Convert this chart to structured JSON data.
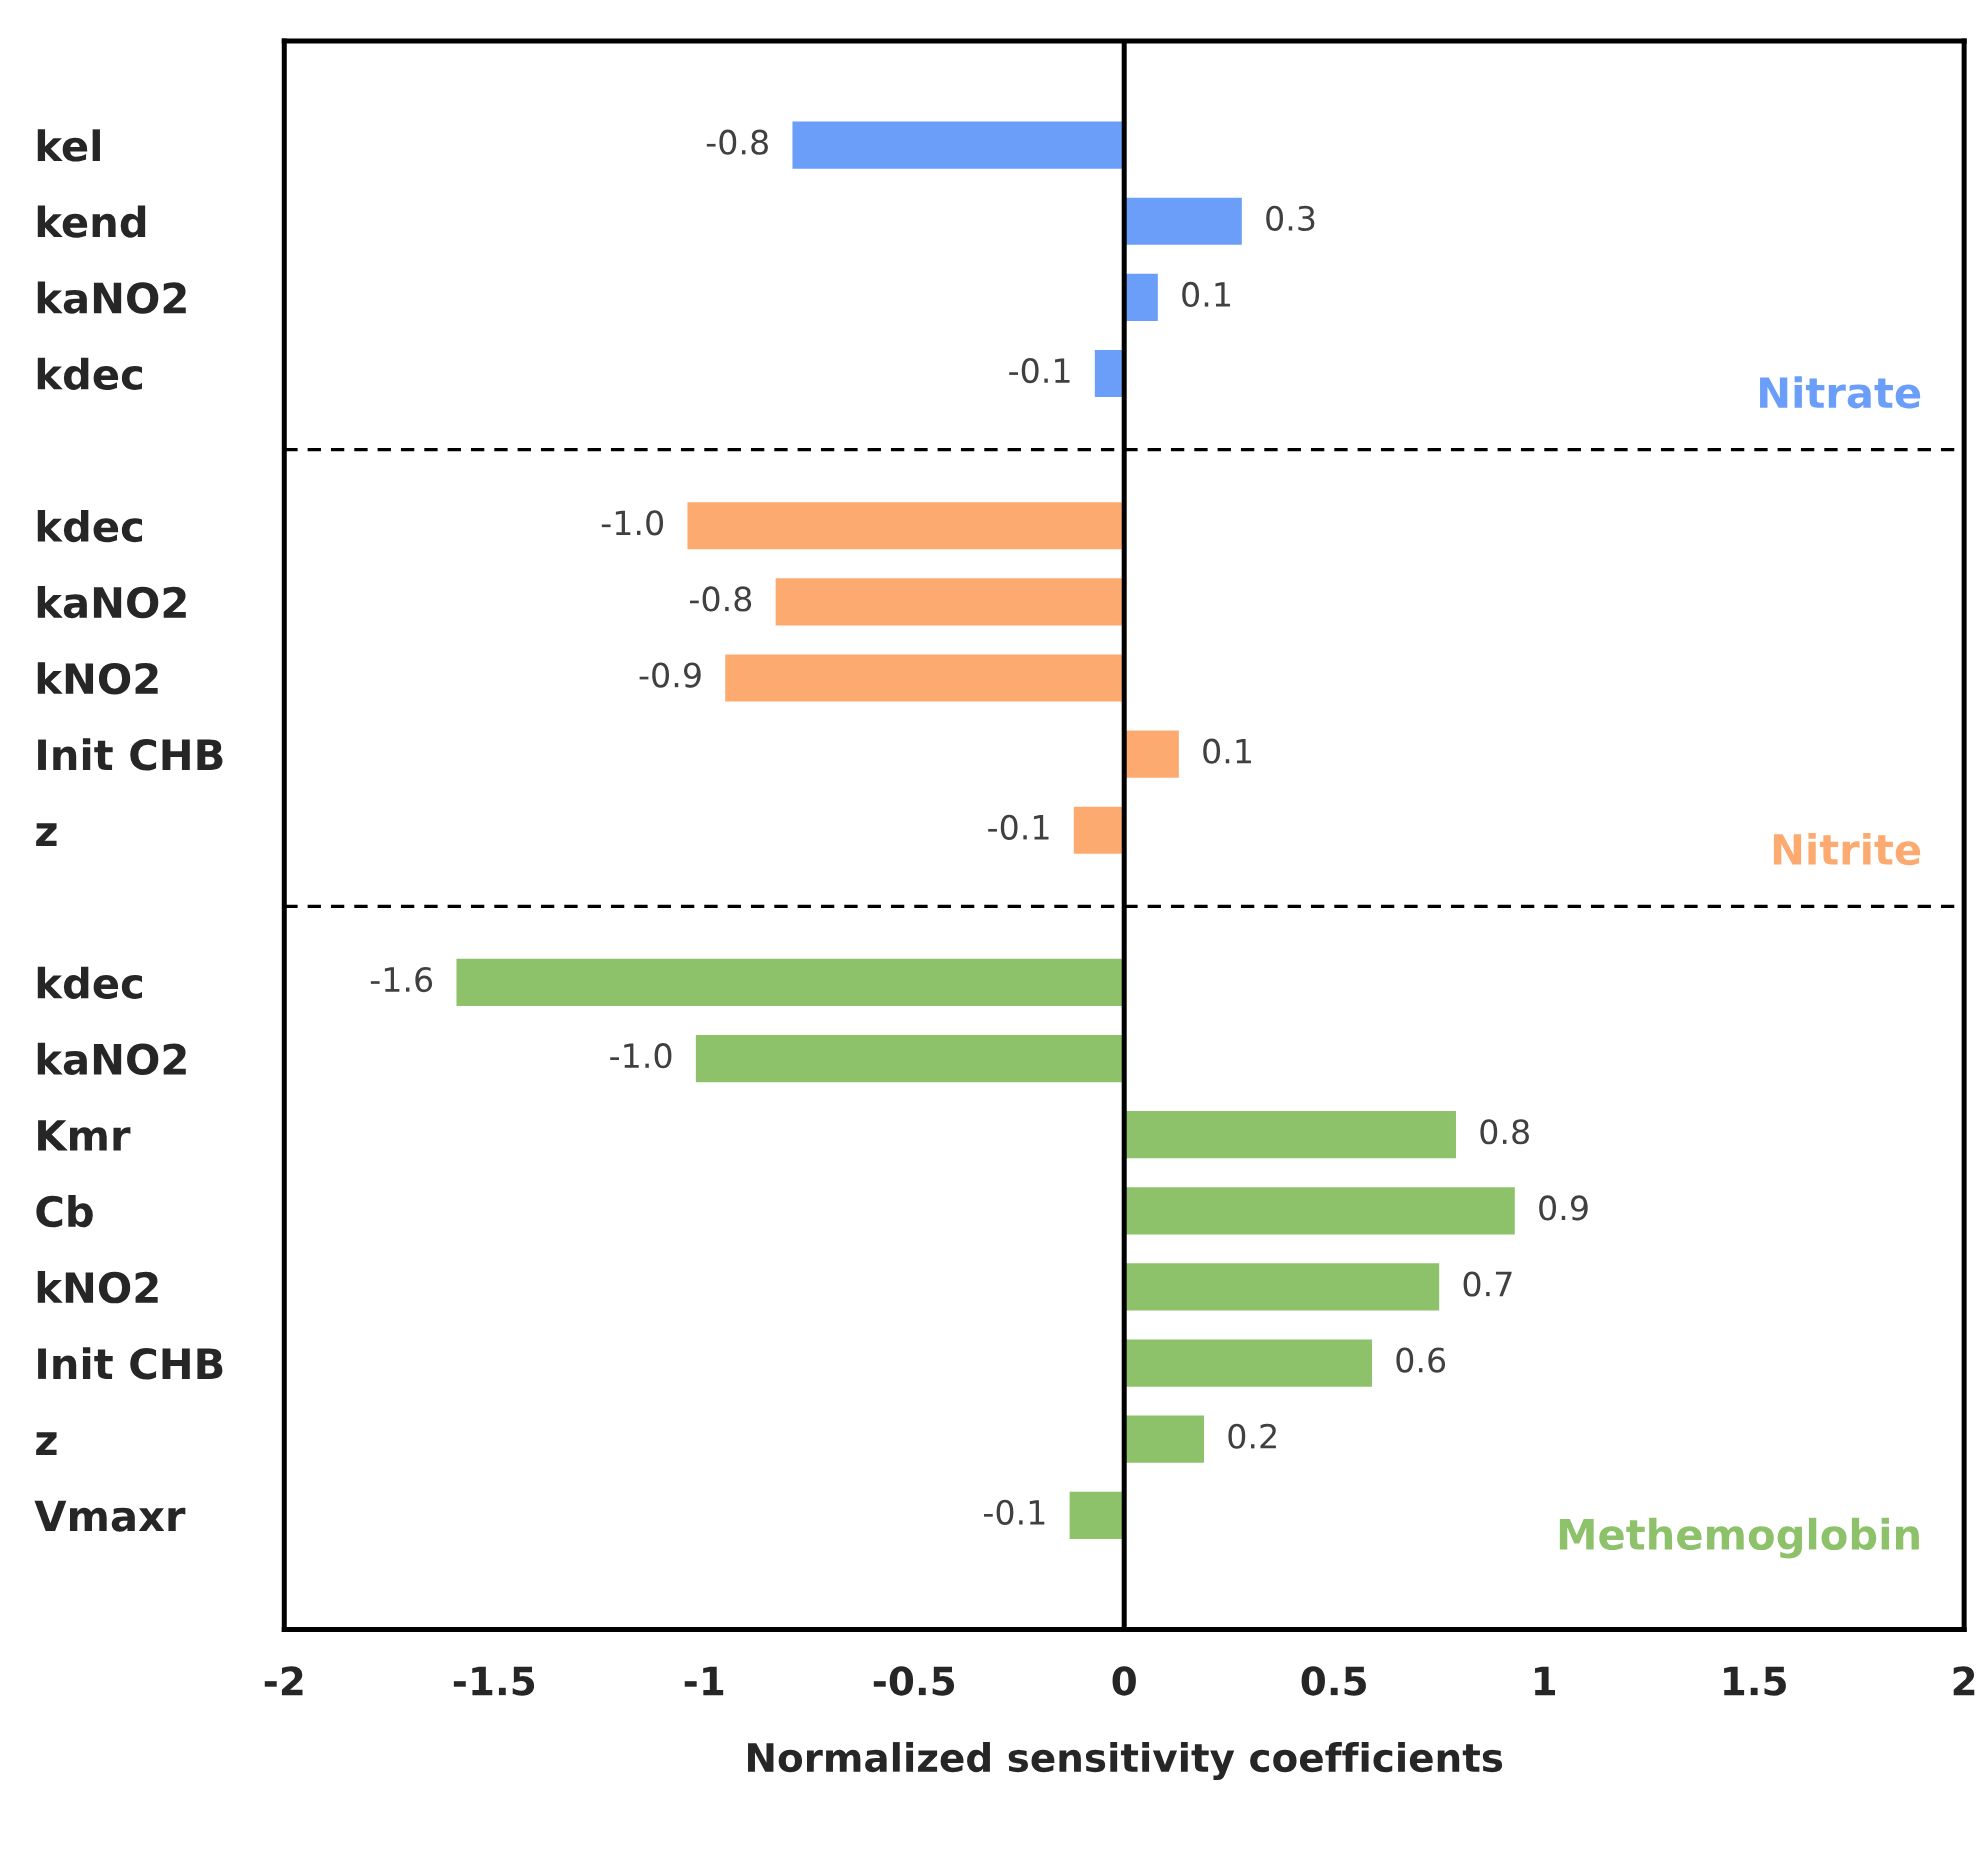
{
  "chart_data": {
    "type": "bar",
    "orientation": "horizontal",
    "xlabel": "Normalized sensitivity coefficients",
    "categories": [
      "kel",
      "kend",
      "kaNO2",
      "kdec",
      null,
      "kdec",
      "kaNO2",
      "kNO2",
      "Init CHB",
      "z",
      null,
      "kdec",
      "kaNO2",
      "Kmr",
      "Cb",
      "kNO2",
      "Init CHB",
      "z",
      "Vmaxr"
    ],
    "series": [
      {
        "name": "Nitrate",
        "color": "#6a9ef8",
        "values": [
          -0.79,
          0.28,
          0.08,
          -0.07,
          null,
          null,
          null,
          null,
          null,
          null,
          null,
          null,
          null,
          null,
          null,
          null,
          null,
          null,
          null
        ],
        "value_labels": [
          "-0.8",
          "0.3",
          "0.1",
          "-0.1",
          null,
          null,
          null,
          null,
          null,
          null,
          null,
          null,
          null,
          null,
          null,
          null,
          null,
          null,
          null
        ]
      },
      {
        "name": "Nitrite",
        "color": "#fcaa6f",
        "values": [
          null,
          null,
          null,
          null,
          null,
          -1.04,
          -0.83,
          -0.95,
          0.13,
          -0.12,
          null,
          null,
          null,
          null,
          null,
          null,
          null,
          null,
          null
        ],
        "value_labels": [
          null,
          null,
          null,
          null,
          null,
          "-1.0",
          "-0.8",
          "-0.9",
          "0.1",
          "-0.1",
          null,
          null,
          null,
          null,
          null,
          null,
          null,
          null,
          null
        ]
      },
      {
        "name": "Methemoglobin",
        "color": "#8dc26a",
        "values": [
          null,
          null,
          null,
          null,
          null,
          null,
          null,
          null,
          null,
          null,
          null,
          -1.59,
          -1.02,
          0.79,
          0.93,
          0.75,
          0.59,
          0.19,
          -0.13
        ],
        "value_labels": [
          null,
          null,
          null,
          null,
          null,
          null,
          null,
          null,
          null,
          null,
          null,
          "-1.6",
          "-1.0",
          "0.8",
          "0.9",
          "0.7",
          "0.6",
          "0.2",
          "-0.1"
        ]
      }
    ],
    "xlim": [
      -2,
      2
    ],
    "xticks": [
      -2,
      -1.5,
      -1,
      -0.5,
      0,
      0.5,
      1,
      1.5,
      2
    ],
    "ref_lines": [
      {
        "axis": "x",
        "value": 0,
        "color": "#000000",
        "line_style": "solid"
      }
    ],
    "grid": false,
    "legend": false
  }
}
